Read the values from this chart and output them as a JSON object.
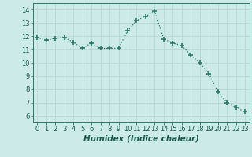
{
  "x": [
    0,
    1,
    2,
    3,
    4,
    5,
    6,
    7,
    8,
    9,
    10,
    11,
    12,
    13,
    14,
    15,
    16,
    17,
    18,
    19,
    20,
    21,
    22,
    23
  ],
  "y": [
    11.9,
    11.7,
    11.85,
    11.9,
    11.55,
    11.1,
    11.5,
    11.1,
    11.1,
    11.1,
    12.4,
    13.2,
    13.5,
    13.9,
    11.8,
    11.5,
    11.3,
    10.6,
    10.0,
    9.2,
    7.8,
    7.0,
    6.65,
    6.3
  ],
  "line_color": "#2a7a65",
  "marker": "+",
  "markersize": 4,
  "linewidth": 0.9,
  "bg_color": "#cceae7",
  "grid_color": "#b8d8d4",
  "xlabel": "Humidex (Indice chaleur)",
  "ylabel": "",
  "title": "",
  "xlim": [
    -0.5,
    23.5
  ],
  "ylim": [
    5.5,
    14.5
  ],
  "yticks": [
    6,
    7,
    8,
    9,
    10,
    11,
    12,
    13,
    14
  ],
  "xticks": [
    0,
    1,
    2,
    3,
    4,
    5,
    6,
    7,
    8,
    9,
    10,
    11,
    12,
    13,
    14,
    15,
    16,
    17,
    18,
    19,
    20,
    21,
    22,
    23
  ],
  "xlabel_fontsize": 7.5,
  "tick_fontsize": 6,
  "tick_color": "#1a5a4a",
  "spine_color": "#2a7a65"
}
